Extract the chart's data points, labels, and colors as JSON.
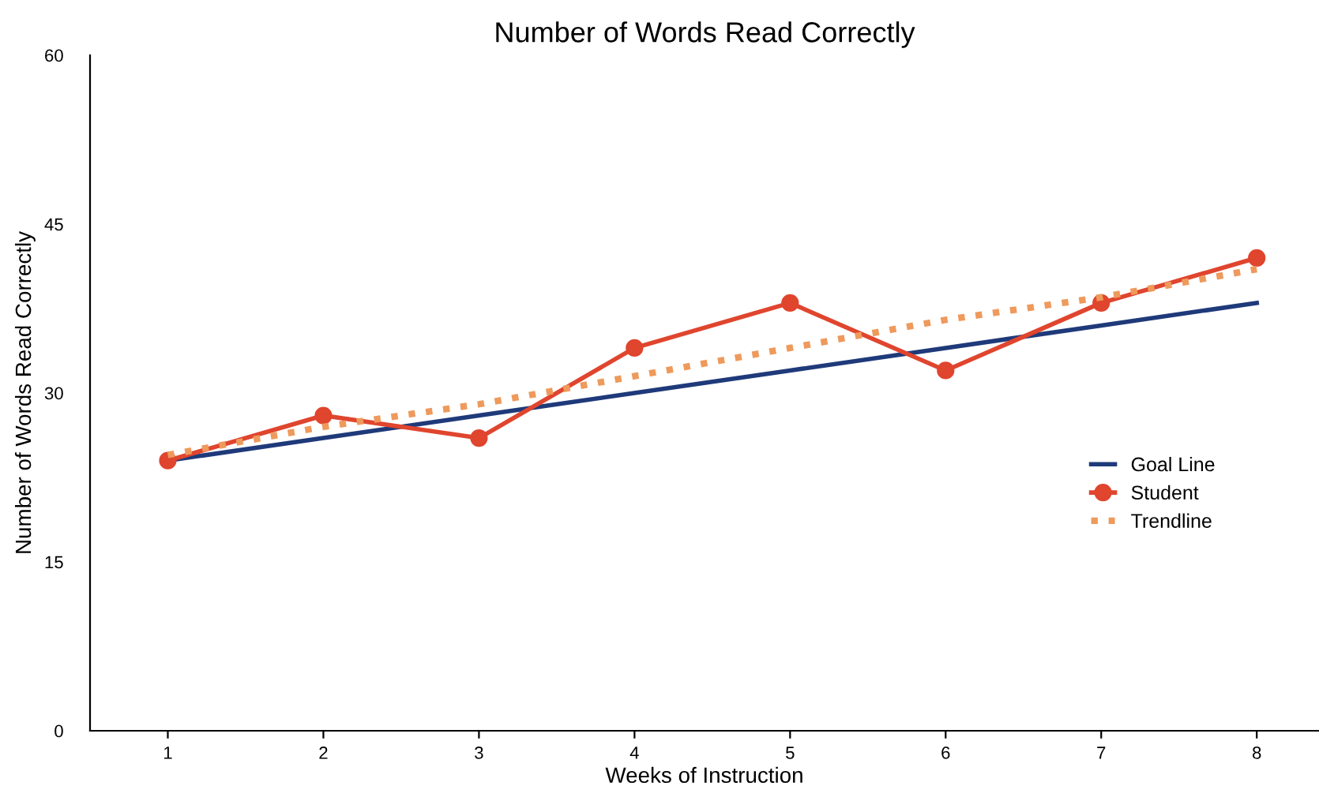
{
  "chart_data": {
    "type": "line",
    "title": "Number of Words Read Correctly",
    "xlabel": "Weeks of Instruction",
    "ylabel": "Number of Words Read Correctly",
    "x": [
      1,
      2,
      3,
      4,
      5,
      6,
      7,
      8
    ],
    "xlim": [
      0.5,
      8.4
    ],
    "xticks": [
      1,
      2,
      3,
      4,
      5,
      6,
      7,
      8
    ],
    "ylim": [
      0,
      60
    ],
    "yticks": [
      0,
      15,
      30,
      45,
      60
    ],
    "grid": false,
    "legend": "right",
    "series": [
      {
        "name": "Goal Line",
        "color": "#1f3a7a",
        "values": [
          24,
          26,
          28,
          30,
          32,
          34,
          36,
          38
        ],
        "marker": "none",
        "line_style": "solid"
      },
      {
        "name": "Student",
        "color": "#e0452e",
        "values": [
          24,
          28,
          26,
          34,
          38,
          32,
          38,
          42
        ],
        "marker": "circle",
        "line_style": "solid"
      },
      {
        "name": "Trendline",
        "color": "#ee9a5c",
        "values": [
          24.5,
          27,
          29,
          31.5,
          34,
          36.5,
          38.5,
          41
        ],
        "marker": "none",
        "line_style": "dotted"
      }
    ]
  }
}
